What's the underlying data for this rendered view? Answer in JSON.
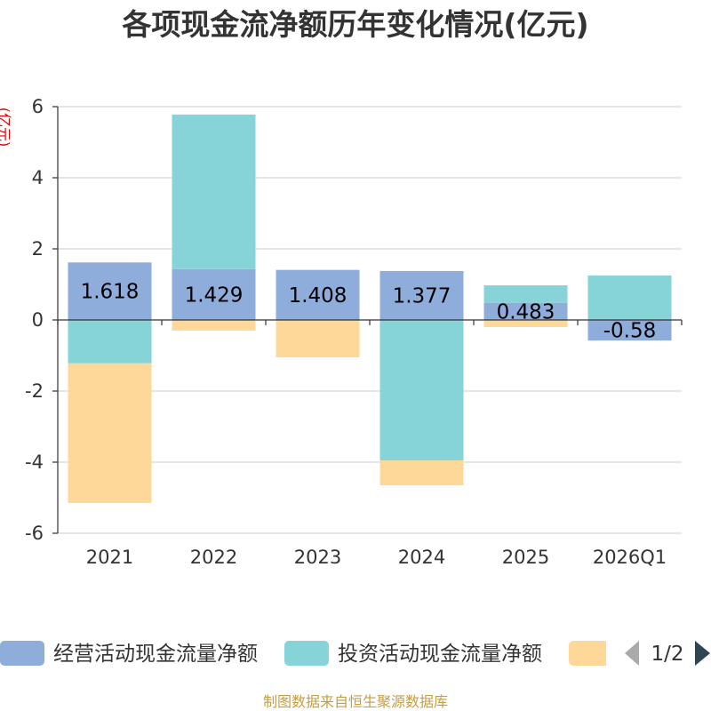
{
  "chart_data": {
    "type": "bar",
    "stacked": true,
    "title": "各项现金流净额历年变化情况(亿元)",
    "xlabel": "",
    "ylabel": "(亿元)",
    "categories": [
      "2021",
      "2022",
      "2023",
      "2024",
      "2025",
      "2026Q1"
    ],
    "ylim": [
      -6,
      6
    ],
    "yticks": [
      6,
      4,
      2,
      0,
      -2,
      -4,
      -6
    ],
    "grid": true,
    "series": [
      {
        "name": "经营活动现金流量净额",
        "color": "#8eaddb",
        "values": [
          1.618,
          1.429,
          1.408,
          1.377,
          0.483,
          -0.58
        ],
        "data_labels": [
          "1.618",
          "1.429",
          "1.408",
          "1.377",
          "0.483",
          "-0.58"
        ]
      },
      {
        "name": "投资活动现金流量净额",
        "color": "#86d4d8",
        "values": [
          -1.22,
          4.35,
          0,
          -3.95,
          0.49,
          1.25
        ]
      },
      {
        "name": "",
        "color": "#fdd899",
        "values": [
          -3.93,
          -0.3,
          -1.05,
          -0.7,
          -0.2,
          0
        ]
      }
    ],
    "legend": {
      "position": "bottom",
      "page": "1/2"
    }
  },
  "footer": {
    "source": "制图数据来自恒生聚源数据库"
  }
}
